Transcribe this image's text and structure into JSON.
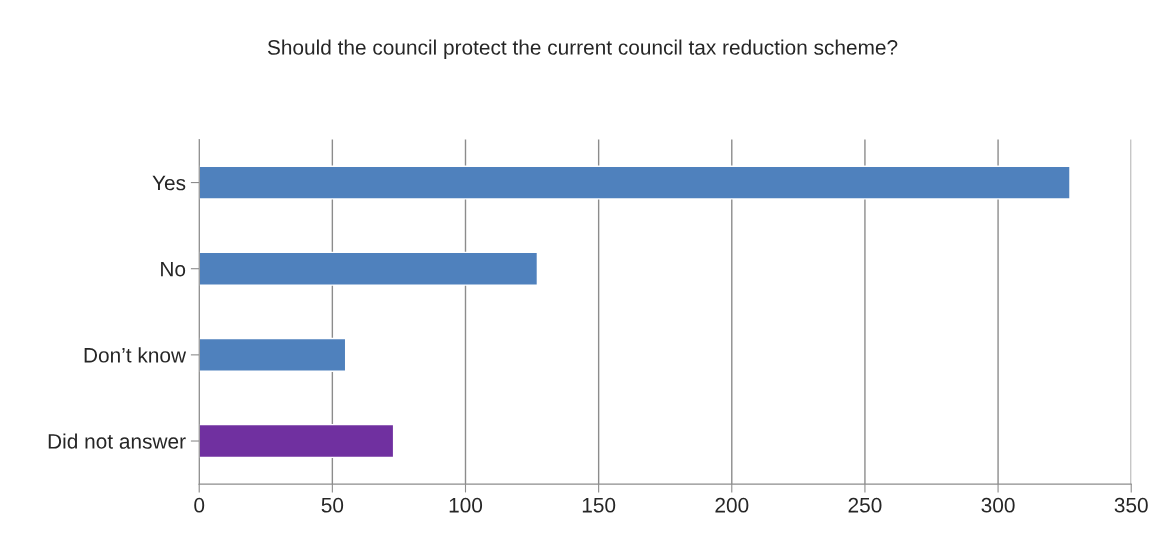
{
  "chart_data": {
    "type": "bar",
    "orientation": "horizontal",
    "title": "Should the council protect the current council tax reduction scheme?",
    "categories": [
      "Yes",
      "No",
      "Don’t know",
      "Did not answer"
    ],
    "values": [
      327,
      127,
      55,
      73
    ],
    "colors": [
      "#4f81bd",
      "#4f81bd",
      "#4f81bd",
      "#7030a0"
    ],
    "xlim": [
      0,
      350
    ],
    "xticks": [
      0,
      50,
      100,
      150,
      200,
      250,
      300,
      350
    ],
    "grid": "x"
  }
}
